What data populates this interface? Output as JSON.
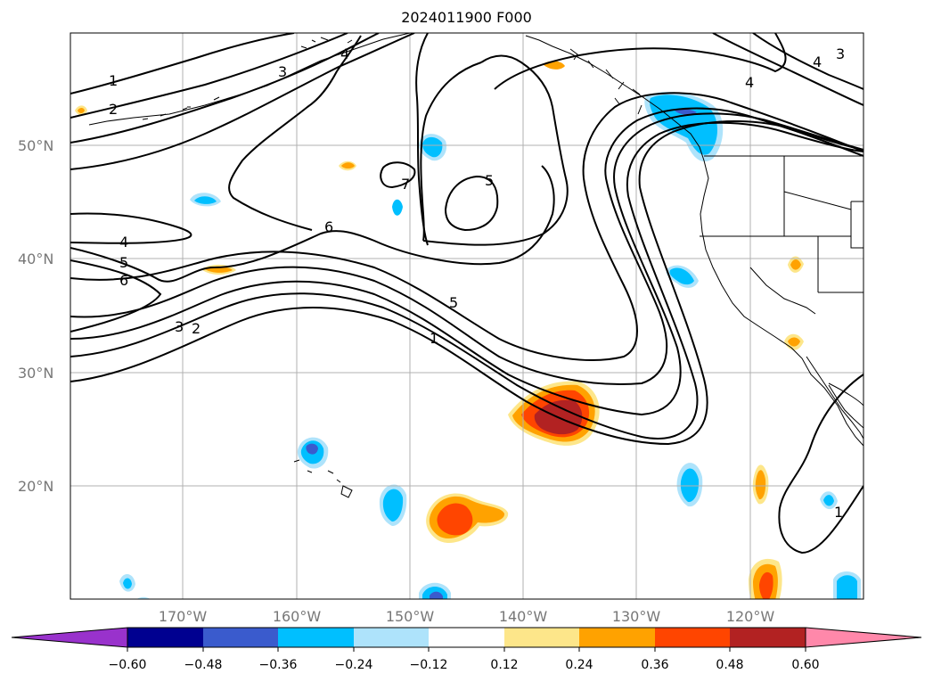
{
  "title": "2024011900 F000",
  "latitude_labels": [
    "50°N",
    "40°N",
    "30°N",
    "20°N"
  ],
  "longitude_labels": [
    "170°W",
    "160°W",
    "150°W",
    "140°W",
    "130°W",
    "120°W"
  ],
  "contour_labels": [
    "1",
    "2",
    "3",
    "4",
    "5",
    "6",
    "7"
  ],
  "colorbar": {
    "ticks": [
      "−0.60",
      "−0.48",
      "−0.36",
      "−0.24",
      "−0.12",
      "0.12",
      "0.24",
      "0.36",
      "0.48",
      "0.60"
    ],
    "colors": [
      "#9932cc",
      "#000090",
      "#3a5bcd",
      "#00bfff",
      "#aee3fb",
      "#ffffff",
      "#fde68a",
      "#ffa200",
      "#ff4500",
      "#b22222",
      "#ff88aa"
    ]
  },
  "shading_colors": {
    "light_blue": "#aee3fb",
    "blue": "#00bfff",
    "mid_blue": "#3a5bcd",
    "navy": "#000090",
    "light_yellow": "#fde68a",
    "orange": "#ffa200",
    "red_orange": "#ff4500",
    "dark_red": "#b22222"
  }
}
